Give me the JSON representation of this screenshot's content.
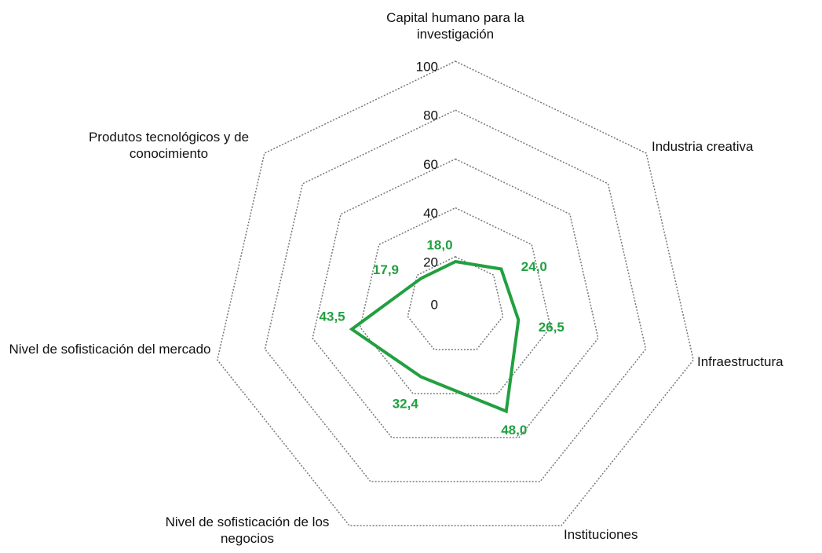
{
  "chart_data": {
    "type": "radar",
    "categories": [
      "Capital humano para la investigación",
      "Industria creativa",
      "Infraestructura",
      "Instituciones",
      "Nivel de sofisticación de los negocios",
      "Nivel de sofisticación del mercado",
      "Produtos tecnológicos y de conocimiento"
    ],
    "values": [
      18.0,
      24.0,
      26.5,
      48.0,
      32.4,
      43.5,
      17.9
    ],
    "value_labels": [
      "18,0",
      "24,0",
      "26,5",
      "48,0",
      "32,4",
      "43,5",
      "17,9"
    ],
    "color": "#22a040",
    "ylim": [
      0,
      100
    ],
    "yticks": [
      0,
      20,
      40,
      60,
      80,
      100
    ],
    "grid": true
  }
}
